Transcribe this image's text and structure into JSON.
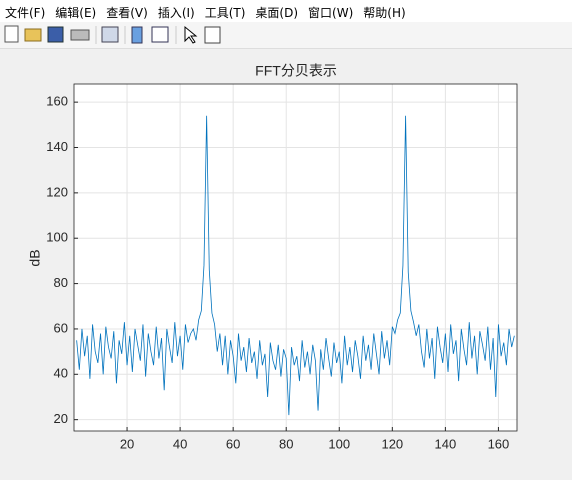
{
  "menu": [
    "文件(F)",
    "编辑(E)",
    "查看(V)",
    "插入(I)",
    "工具(T)",
    "桌面(D)",
    "窗口(W)",
    "帮助(H)"
  ],
  "chart_data": {
    "type": "line",
    "title": "FFT分贝表示",
    "y_label": "dB",
    "x": [
      1,
      2,
      3,
      4,
      5,
      6,
      7,
      8,
      9,
      10,
      11,
      12,
      13,
      14,
      15,
      16,
      17,
      18,
      19,
      20,
      21,
      22,
      23,
      24,
      25,
      26,
      27,
      28,
      29,
      30,
      31,
      32,
      33,
      34,
      35,
      36,
      37,
      38,
      39,
      40,
      41,
      42,
      43,
      44,
      45,
      46,
      47,
      48,
      49,
      50,
      51,
      52,
      53,
      54,
      55,
      56,
      57,
      58,
      59,
      60,
      61,
      62,
      63,
      64,
      65,
      66,
      67,
      68,
      69,
      70,
      71,
      72,
      73,
      74,
      75,
      76,
      77,
      78,
      79,
      80,
      81,
      82,
      83,
      84,
      85,
      86,
      87,
      88,
      89,
      90,
      91,
      92,
      93,
      94,
      95,
      96,
      97,
      98,
      99,
      100,
      101,
      102,
      103,
      104,
      105,
      106,
      107,
      108,
      109,
      110,
      111,
      112,
      113,
      114,
      115,
      116,
      117,
      118,
      119,
      120,
      121,
      122,
      123,
      124,
      125,
      126,
      127,
      128,
      129,
      130,
      131,
      132,
      133,
      134,
      135,
      136,
      137,
      138,
      139,
      140,
      141,
      142,
      143,
      144,
      145,
      146,
      147,
      148,
      149,
      150,
      151,
      152,
      153,
      154,
      155,
      156,
      157,
      158,
      159,
      160,
      161,
      162,
      163,
      164,
      165,
      166
    ],
    "series": [
      {
        "color": "#0072bd",
        "values": [
          55,
          42,
          60,
          48,
          57,
          38,
          62,
          50,
          45,
          58,
          40,
          61,
          52,
          47,
          59,
          36,
          55,
          49,
          63,
          44,
          57,
          41,
          60,
          53,
          46,
          62,
          39,
          58,
          50,
          44,
          61,
          47,
          56,
          33,
          60,
          52,
          45,
          63,
          48,
          57,
          42,
          62,
          54,
          58,
          60,
          55,
          64,
          68,
          88,
          154,
          86,
          67,
          62,
          50,
          58,
          44,
          57,
          40,
          55,
          48,
          36,
          58,
          46,
          52,
          41,
          56,
          45,
          50,
          38,
          55,
          44,
          49,
          30,
          54,
          46,
          42,
          53,
          39,
          51,
          47,
          22,
          52,
          44,
          48,
          37,
          55,
          43,
          50,
          40,
          53,
          46,
          24,
          51,
          42,
          56,
          47,
          39,
          54,
          45,
          50,
          36,
          57,
          44,
          52,
          41,
          55,
          48,
          38,
          57,
          46,
          53,
          42,
          58,
          49,
          40,
          59,
          47,
          55,
          44,
          61,
          58,
          64,
          67,
          88,
          154,
          85,
          68,
          63,
          57,
          62,
          50,
          43,
          60,
          47,
          56,
          38,
          61,
          52,
          45,
          58,
          41,
          62,
          49,
          55,
          37,
          60,
          51,
          44,
          63,
          47,
          57,
          40,
          59,
          53,
          46,
          61,
          42,
          56,
          30,
          62,
          48,
          54,
          44,
          60,
          52,
          57
        ]
      }
    ],
    "xlim": [
      0,
      167
    ],
    "ylim": [
      15,
      168
    ],
    "xticks": [
      20,
      40,
      60,
      80,
      100,
      120,
      140,
      160
    ],
    "yticks": [
      20,
      40,
      60,
      80,
      100,
      120,
      140,
      160
    ],
    "grid": true
  }
}
